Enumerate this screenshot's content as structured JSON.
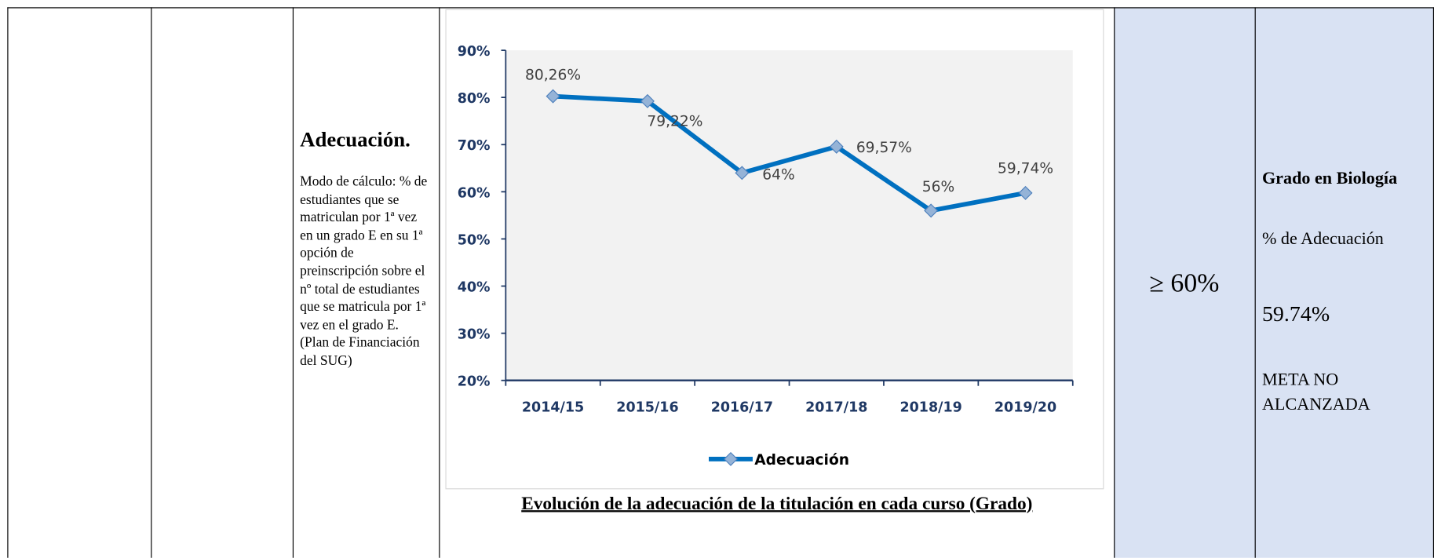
{
  "indicator": {
    "title": "Adecuación.",
    "description": "Modo de cálculo: % de estudiantes que se matriculan por 1ª vez en un grado E en su 1ª opción de preinscripción sobre el nº total de estudiantes que se matricula por 1ª vez en el grado E. (Plan de Financiación del SUG)"
  },
  "chart_data": {
    "type": "line",
    "caption": "Evolución de la adecuación de la titulación en cada curso (Grado)",
    "categories": [
      "2014/15",
      "2015/16",
      "2016/17",
      "2017/18",
      "2018/19",
      "2019/20"
    ],
    "series": [
      {
        "name": "Adecuación",
        "color": "#0070c0",
        "values": [
          80.26,
          79.22,
          64,
          69.57,
          56,
          59.74
        ],
        "value_labels": [
          "80,26%",
          "79,22%",
          "64%",
          "69,57%",
          "56%",
          "59,74%"
        ]
      }
    ],
    "ylim": [
      20,
      90
    ],
    "yticks": [
      {
        "value": 20,
        "label": "20%"
      },
      {
        "value": 30,
        "label": "30%"
      },
      {
        "value": 40,
        "label": "40%"
      },
      {
        "value": 50,
        "label": "50%"
      },
      {
        "value": 60,
        "label": "60%"
      },
      {
        "value": 70,
        "label": "70%"
      },
      {
        "value": 80,
        "label": "80%"
      },
      {
        "value": 90,
        "label": "90%"
      }
    ],
    "legend": "bottom"
  },
  "target": "≥ 60%",
  "result": {
    "degree": "Grado en Biología",
    "metric": "% de Adecuación",
    "value": "59.74%",
    "status": "META NO ALCANZADA"
  }
}
